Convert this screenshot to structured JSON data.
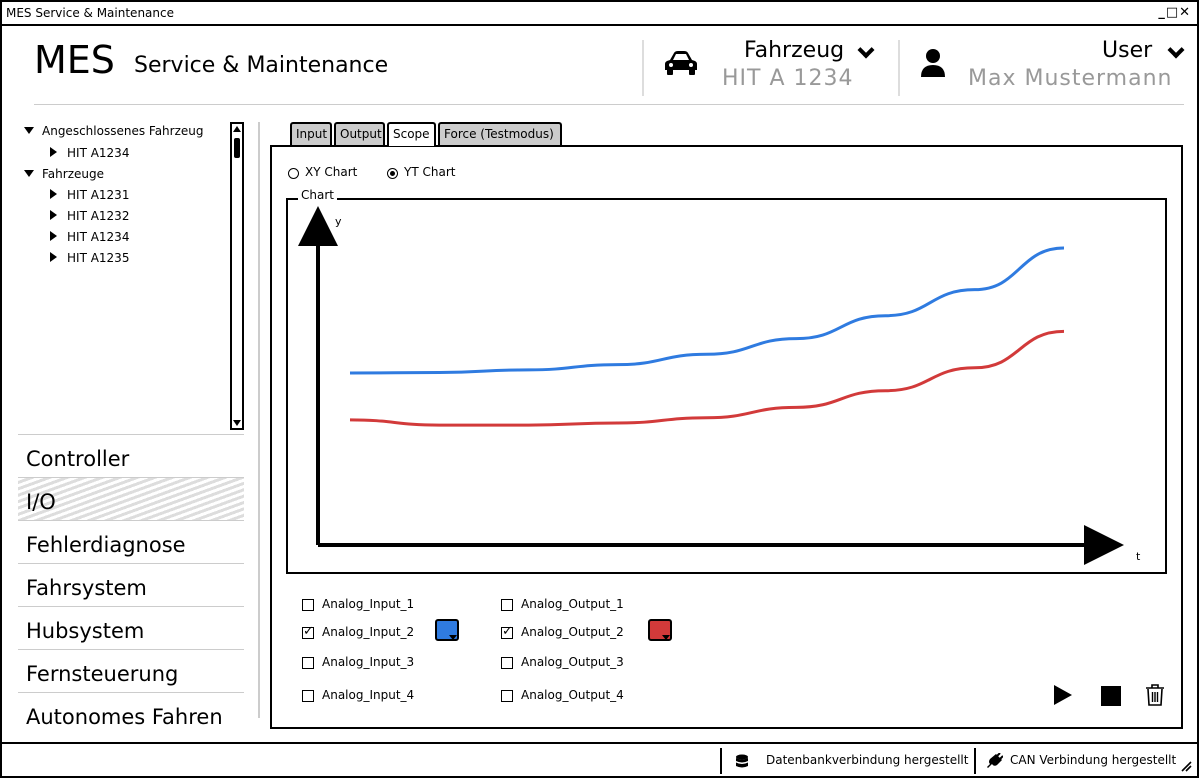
{
  "window": {
    "title": "MES Service & Maintenance",
    "controls": "_□✕"
  },
  "header": {
    "logo": "MES",
    "subtitle": "Service & Maintenance",
    "vehicle": {
      "title": "Fahrzeug",
      "value": "HIT A 1234",
      "icon": "car-icon"
    },
    "user": {
      "title": "User",
      "value": "Max Mustermann",
      "icon": "user-icon"
    }
  },
  "tree": {
    "groups": [
      {
        "label": "Angeschlossenes Fahrzeug",
        "items": [
          "HIT A1234"
        ]
      },
      {
        "label": "Fahrzeuge",
        "items": [
          "HIT A1231",
          "HIT A1232",
          "HIT A1234",
          "HIT A1235"
        ]
      }
    ]
  },
  "sidenav": {
    "items": [
      "Controller",
      "I/O",
      "Fehlerdiagnose",
      "Fahrsystem",
      "Hubsystem",
      "Fernsteuerung",
      "Autonomes Fahren"
    ],
    "active_index": 1
  },
  "tabs": [
    "Input",
    "Output",
    "Scope",
    "Force (Testmodus)"
  ],
  "scope": {
    "mode_options": [
      {
        "label": "XY Chart",
        "selected": false
      },
      {
        "label": "YT Chart",
        "selected": true
      }
    ],
    "chart_group_label": "Chart",
    "inputs": [
      {
        "label": "Analog_Input_1",
        "checked": false
      },
      {
        "label": "Analog_Input_2",
        "checked": true,
        "color": "#2f7be0"
      },
      {
        "label": "Analog_Input_3",
        "checked": false
      },
      {
        "label": "Analog_Input_4",
        "checked": false
      }
    ],
    "outputs": [
      {
        "label": "Analog_Output_1",
        "checked": false
      },
      {
        "label": "Analog_Output_2",
        "checked": true,
        "color": "#d23a3a"
      },
      {
        "label": "Analog_Output_3",
        "checked": false
      },
      {
        "label": "Analog_Output_4",
        "checked": false
      }
    ],
    "controls": [
      "play-icon",
      "stop-icon",
      "trash-icon"
    ]
  },
  "chart_data": {
    "type": "line",
    "title": "",
    "xlabel": "t",
    "ylabel": "y",
    "grid": false,
    "series": [
      {
        "color": "#2f7be0",
        "values": [
          0.0,
          0.005,
          0.03,
          0.08,
          0.18,
          0.33,
          0.55,
          0.8,
          1.2
        ]
      },
      {
        "color": "#d23a3a",
        "values": [
          -0.45,
          -0.5,
          -0.5,
          -0.48,
          -0.43,
          -0.33,
          -0.17,
          0.05,
          0.4
        ]
      }
    ]
  },
  "statusbar": {
    "db": {
      "label": "Datenbankverbindung hergestellt",
      "icon": "database-icon"
    },
    "can": {
      "label": "CAN Verbindung hergestellt",
      "icon": "plug-icon"
    }
  }
}
